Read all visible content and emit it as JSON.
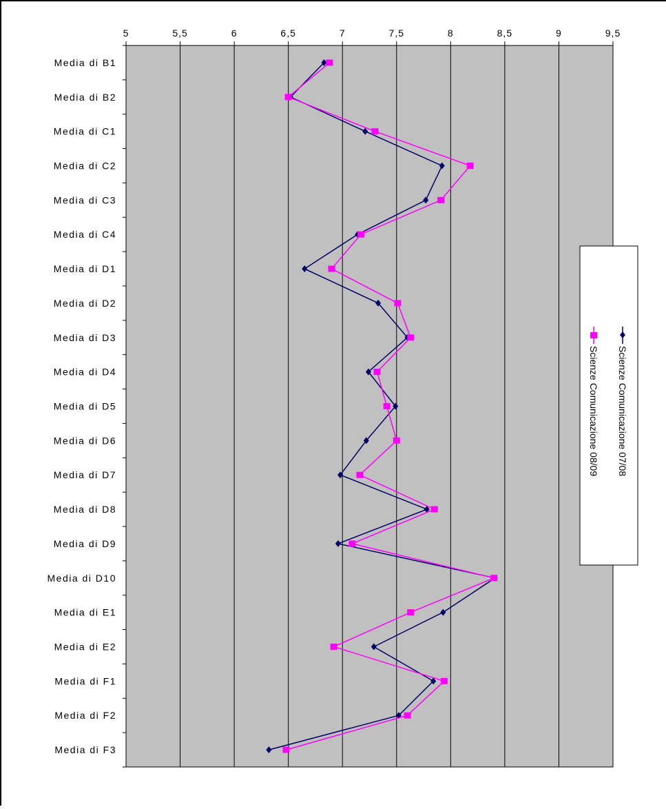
{
  "chart_data": {
    "type": "line",
    "orientation": "horizontal",
    "title": "",
    "xlabel": "",
    "ylabel": "",
    "xlim": [
      5,
      9.5
    ],
    "x_ticks": [
      "5",
      "5,5",
      "6",
      "6,5",
      "7",
      "7,5",
      "8",
      "8,5",
      "9",
      "9,5"
    ],
    "x_tick_values": [
      5,
      5.5,
      6,
      6.5,
      7,
      7.5,
      8,
      8.5,
      9,
      9.5
    ],
    "categories": [
      "Media di B1",
      "Media di B2",
      "Media di C1",
      "Media di C2",
      "Media di C3",
      "Media di C4",
      "Media di D1",
      "Media di D2",
      "Media di D3",
      "Media di D4",
      "Media di D5",
      "Media di D6",
      "Media di D7",
      "Media di D8",
      "Media di D9",
      "Media di D10",
      "Media di E1",
      "Media di E2",
      "Media di F1",
      "Media di F2",
      "Media di F3"
    ],
    "series": [
      {
        "name": "Scienze Comunicazione 07/08",
        "color": "#000066",
        "marker": "diamond",
        "values": [
          6.83,
          6.52,
          7.21,
          7.92,
          7.77,
          7.14,
          6.65,
          7.33,
          7.6,
          7.24,
          7.49,
          7.22,
          6.98,
          7.78,
          6.96,
          8.41,
          7.93,
          7.29,
          7.84,
          7.52,
          6.32
        ]
      },
      {
        "name": "Scienze Comunicazione 08/09",
        "color": "#ff00ff",
        "marker": "square",
        "values": [
          6.88,
          6.5,
          7.3,
          8.18,
          7.91,
          7.17,
          6.9,
          7.51,
          7.63,
          7.32,
          7.41,
          7.5,
          7.16,
          7.85,
          7.09,
          8.4,
          7.63,
          6.92,
          7.94,
          7.6,
          6.48
        ]
      }
    ],
    "plot_background": "#c0c0c0",
    "grid": "vertical",
    "legend_placement": "right",
    "legend_orientation": "rotated-90"
  }
}
